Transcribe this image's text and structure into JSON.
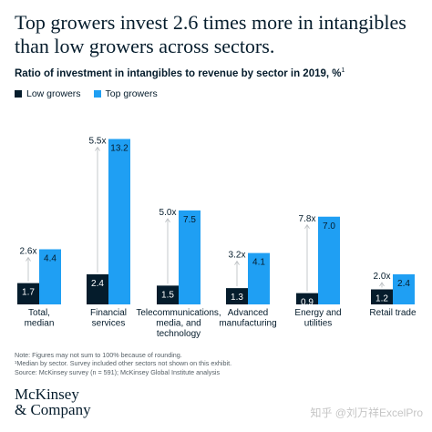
{
  "headline": "Top growers invest 2.6 times more in intangibles than low growers across sectors.",
  "chart_data": {
    "type": "bar",
    "title": "Ratio of investment in intangibles to revenue by sector in 2019, %",
    "title_footnote": "1",
    "ylim": [
      0,
      14.4
    ],
    "grid": false,
    "legend_placement": "top-left",
    "categories": [
      [
        "Total,",
        "median"
      ],
      [
        "Financial",
        "services"
      ],
      [
        "Telecommunications,",
        "media, and",
        "technology"
      ],
      [
        "Advanced",
        "manufacturing"
      ],
      [
        "Energy and",
        "utilities"
      ],
      [
        "Retail trade"
      ]
    ],
    "series": [
      {
        "name": "Low growers",
        "color": "#051c2c",
        "values": [
          1.7,
          2.4,
          1.5,
          1.3,
          0.9,
          1.2
        ],
        "labels": [
          "1.7",
          "2.4",
          "1.5",
          "1.3",
          "0.9",
          "1.2"
        ]
      },
      {
        "name": "Top growers",
        "color": "#1f9ff3",
        "values": [
          4.4,
          13.2,
          7.5,
          4.1,
          7.0,
          2.4
        ],
        "labels": [
          "4.4",
          "13.2",
          "7.5",
          "4.1",
          "7.0",
          "2.4"
        ]
      }
    ],
    "multipliers": [
      "2.6x",
      "5.5x",
      "5.0x",
      "3.2x",
      "7.8x",
      "2.0x"
    ]
  },
  "notes": [
    "Note: Figures may not sum to 100% because of rounding.",
    "¹Median by sector. Survey included other sectors not shown on this exhibit.",
    "Source: McKinsey survey (n = 591); McKinsey Global Institute analysis"
  ],
  "logo": [
    "McKinsey",
    "& Company"
  ],
  "watermark": "知乎 @刘万祥ExcelPro"
}
